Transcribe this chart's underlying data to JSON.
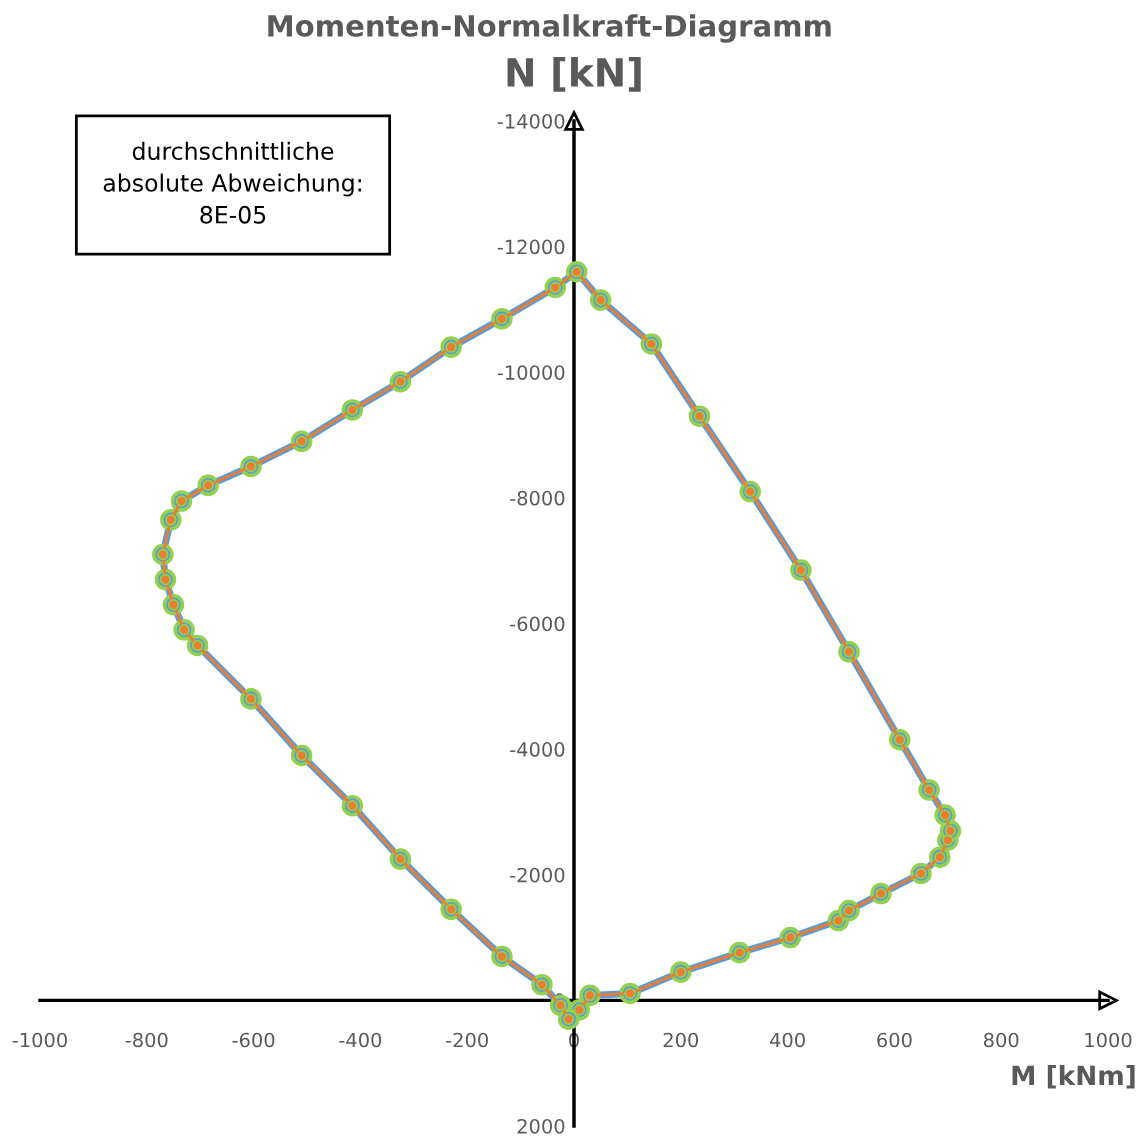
{
  "chart_data": {
    "type": "line",
    "title": "Momenten-Normalkraft-Diagramm",
    "xlabel": "M [kNm]",
    "ylabel": "N [kN]",
    "annotations": [
      "durchschnittliche\nabsolute Abweichung:\n8E-05"
    ],
    "xlim": [
      -1000,
      1000
    ],
    "xticks": [
      -1000,
      -800,
      -600,
      -400,
      -200,
      0,
      200,
      400,
      600,
      800,
      1000
    ],
    "ylim": [
      2000,
      -14000
    ],
    "yticks": [
      -14000,
      -12000,
      -10000,
      -8000,
      -6000,
      -4000,
      -2000,
      0,
      2000
    ],
    "grid": false,
    "legend": false,
    "marker": "circle",
    "line_style": "solid",
    "series": [
      {
        "color": "#5b9bd5",
        "x": [
          10,
          30,
          105,
          200,
          310,
          405,
          495,
          515,
          575,
          650,
          685,
          700,
          705,
          695,
          665,
          610,
          515,
          425,
          330,
          235,
          145,
          50,
          5,
          -35,
          -135,
          -230,
          -325,
          -415,
          -510,
          -605,
          -685,
          -735,
          -755,
          -770,
          -765,
          -750,
          -730,
          -705,
          -605,
          -510,
          -415,
          -325,
          -230,
          -135,
          -60,
          -25,
          -10
        ],
        "values": [
          150,
          -80,
          -110,
          -450,
          -760,
          -1000,
          -1270,
          -1430,
          -1700,
          -2020,
          -2280,
          -2550,
          -2700,
          -2950,
          -3350,
          -4150,
          -5550,
          -6850,
          -8100,
          -9300,
          -10450,
          -11150,
          -11600,
          -11350,
          -10850,
          -10400,
          -9850,
          -9400,
          -8900,
          -8500,
          -8200,
          -7950,
          -7650,
          -7100,
          -6700,
          -6300,
          -5900,
          -5650,
          -4800,
          -3900,
          -3100,
          -2250,
          -1450,
          -700,
          -250,
          80,
          300
        ]
      },
      {
        "color": "#ed7d31",
        "x": [
          10,
          30,
          105,
          200,
          310,
          405,
          495,
          515,
          575,
          650,
          685,
          700,
          705,
          695,
          665,
          610,
          515,
          425,
          330,
          235,
          145,
          50,
          5,
          -35,
          -135,
          -230,
          -325,
          -415,
          -510,
          -605,
          -685,
          -735,
          -755,
          -770,
          -765,
          -750,
          -730,
          -705,
          -605,
          -510,
          -415,
          -325,
          -230,
          -135,
          -60,
          -25,
          -10
        ],
        "values": [
          150,
          -80,
          -110,
          -450,
          -760,
          -1000,
          -1270,
          -1430,
          -1700,
          -2020,
          -2280,
          -2550,
          -2700,
          -2950,
          -3350,
          -4150,
          -5550,
          -6850,
          -8100,
          -9300,
          -10450,
          -11150,
          -11600,
          -11350,
          -10850,
          -10400,
          -9850,
          -9400,
          -8900,
          -8500,
          -8200,
          -7950,
          -7650,
          -7100,
          -6700,
          -6300,
          -5900,
          -5650,
          -4800,
          -3900,
          -3100,
          -2250,
          -1450,
          -700,
          -250,
          80,
          300
        ]
      }
    ]
  }
}
